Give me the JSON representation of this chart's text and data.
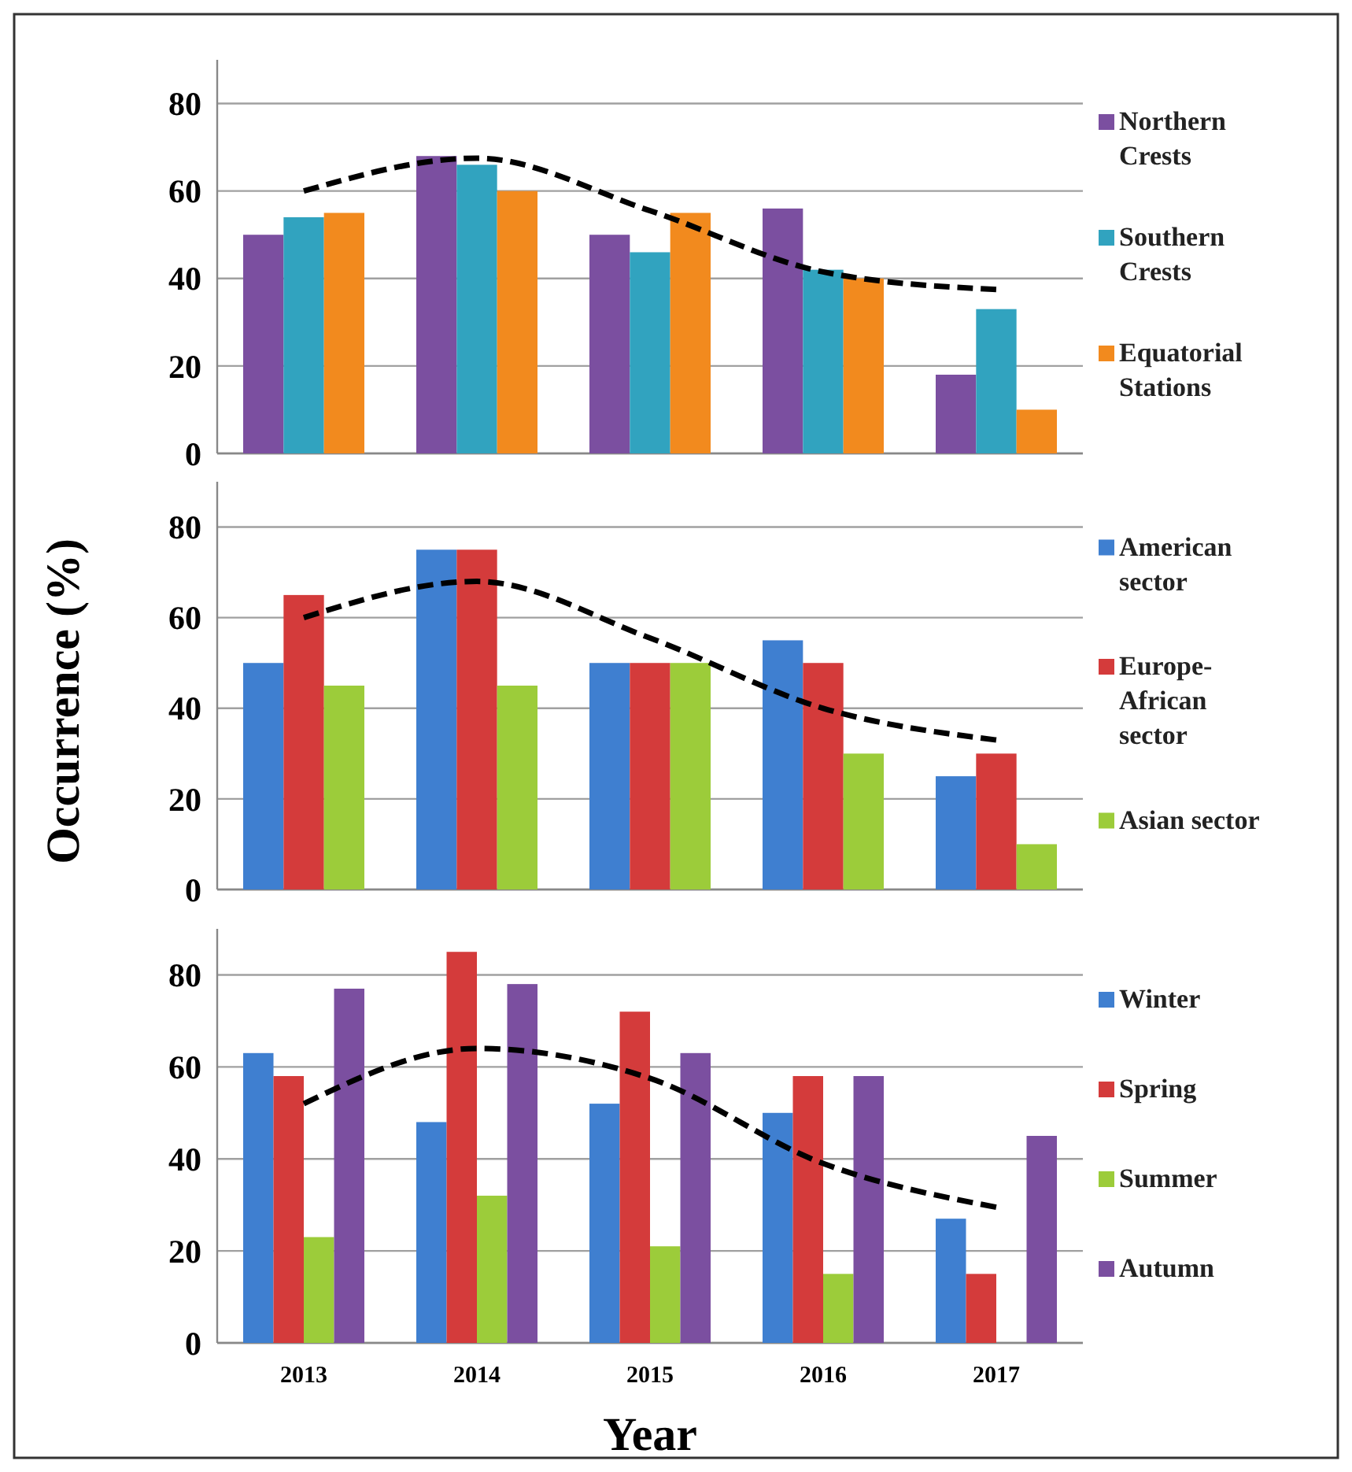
{
  "chart_data": [
    {
      "type": "bar",
      "categories": [
        null,
        null,
        null,
        null,
        null
      ],
      "ylim": [
        0,
        90
      ],
      "yticks": [
        0,
        20,
        40,
        60,
        80
      ],
      "grid": "y",
      "legend": "right",
      "series": [
        {
          "name": "Northern Crests",
          "color": "#7b4fa0",
          "values": [
            50,
            68,
            50,
            56,
            18
          ]
        },
        {
          "name": "Southern Crests",
          "color": "#31a3bf",
          "values": [
            54,
            66,
            46,
            42,
            33
          ]
        },
        {
          "name": "Equatorial Stations",
          "color": "#f28a1e",
          "values": [
            55,
            60,
            55,
            40,
            10
          ]
        },
        {
          "type": "line",
          "color": "#000000",
          "line_style": "dashed",
          "marker": "none",
          "values": [
            60,
            67.5,
            55.5,
            41.5,
            37.5
          ]
        }
      ]
    },
    {
      "type": "bar",
      "ylabel": "Occurrence (%)",
      "categories": [
        null,
        null,
        null,
        null,
        null
      ],
      "ylim": [
        0,
        90
      ],
      "yticks": [
        0,
        20,
        40,
        60,
        80
      ],
      "grid": "y",
      "legend": "right",
      "series": [
        {
          "name": "American sector",
          "color": "#3f7fd0",
          "values": [
            50,
            75,
            50,
            55,
            25
          ]
        },
        {
          "name": "Europe-African sector",
          "color": "#d43b3b",
          "values": [
            65,
            75,
            50,
            50,
            30
          ]
        },
        {
          "name": "Asian sector",
          "color": "#9ccc3a",
          "values": [
            45,
            45,
            50,
            30,
            10
          ]
        },
        {
          "type": "line",
          "color": "#000000",
          "line_style": "dashed",
          "marker": "none",
          "values": [
            60,
            68,
            55.5,
            40,
            33
          ]
        }
      ]
    },
    {
      "type": "bar",
      "xlabel": "Year",
      "categories": [
        "2013",
        "2014",
        "2015",
        "2016",
        "2017"
      ],
      "ylim": [
        0,
        90
      ],
      "yticks": [
        0,
        20,
        40,
        60,
        80
      ],
      "grid": "y",
      "legend": "right",
      "series": [
        {
          "name": "Winter",
          "color": "#3f7fd0",
          "values": [
            63,
            48,
            52,
            50,
            27
          ]
        },
        {
          "name": "Spring",
          "color": "#d43b3b",
          "values": [
            58,
            85,
            72,
            58,
            15
          ]
        },
        {
          "name": "Summer",
          "color": "#9ccc3a",
          "values": [
            23,
            32,
            21,
            15,
            null
          ]
        },
        {
          "name": "Autumn",
          "color": "#7b4fa0",
          "values": [
            77,
            78,
            63,
            58,
            45
          ]
        },
        {
          "type": "line",
          "color": "#000000",
          "line_style": "dashed",
          "marker": "none",
          "values": [
            52,
            64,
            57.5,
            39,
            29.5
          ]
        }
      ]
    }
  ]
}
